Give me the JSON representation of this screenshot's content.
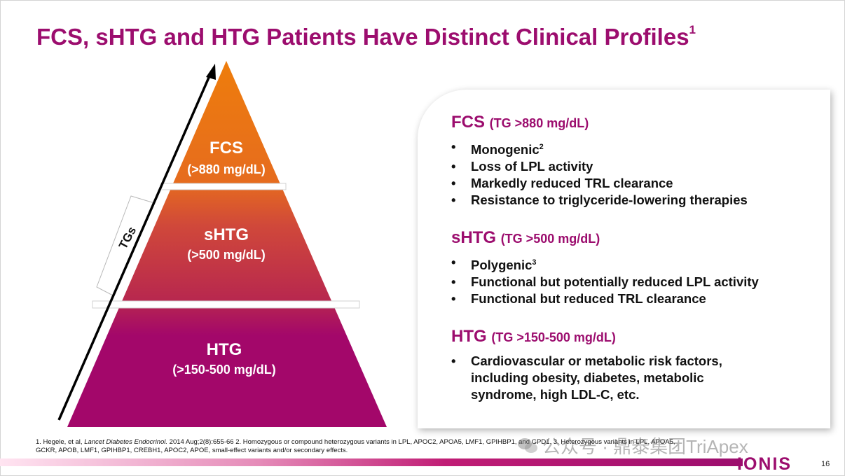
{
  "slide": {
    "title": "FCS, sHTG and HTG Patients Have Distinct Clinical Profiles",
    "title_ref": "1",
    "page_number": "16",
    "logo": "IONIS",
    "watermark": "公众号 · 鼎泰集团TriApex"
  },
  "pyramid": {
    "axis_label": "TGs",
    "tiers": [
      {
        "name": "FCS",
        "range": "(>880 mg/dL)",
        "color": "#e8780f"
      },
      {
        "name": "sHTG",
        "range": "(>500 mg/dL)",
        "color": "#c23b44"
      },
      {
        "name": "HTG",
        "range": "(>150-500 mg/dL)",
        "color": "#a3076a"
      }
    ]
  },
  "profiles": {
    "fcs": {
      "name": "FCS",
      "criteria": "(TG >880 mg/dL)",
      "bullets": [
        "Monogenic",
        "Loss of LPL activity",
        "Markedly reduced TRL clearance",
        "Resistance to triglyceride-lowering therapies"
      ],
      "first_bullet_ref": "2"
    },
    "shtg": {
      "name": "sHTG",
      "criteria": "(TG >500 mg/dL)",
      "bullets": [
        "Polygenic",
        "Functional but potentially reduced LPL activity",
        "Functional but reduced TRL clearance"
      ],
      "first_bullet_ref": "3"
    },
    "htg": {
      "name": "HTG",
      "criteria": "(TG >150-500 mg/dL)",
      "bullets": [
        "Cardiovascular or metabolic risk factors,",
        "including obesity, diabetes, metabolic",
        "syndrome, high LDL-C, etc."
      ]
    }
  },
  "footnote": {
    "ref1_author": "1. Hegele, et al, ",
    "ref1_journal": "Lancet Diabetes Endocrinol.",
    "ref1_rest": " 2014 Aug;2(8):655-66 2. Homozygous or compound heterozygous variants in LPL, APOC2, APOA5, LMF1, GPIHBP1, and GPD1. 3. Heterozygous variants in LPL, APOA5,",
    "line2": "GCKR, APOB, LMF1, GPIHBP1, CREBH1, APOC2, APOE, small-effect variants and/or secondary effects."
  },
  "colors": {
    "brand_magenta": "#9c0d6e",
    "fcs_orange": "#e8780f",
    "shtg_red": "#c23b44",
    "htg_magenta": "#a3076a"
  }
}
